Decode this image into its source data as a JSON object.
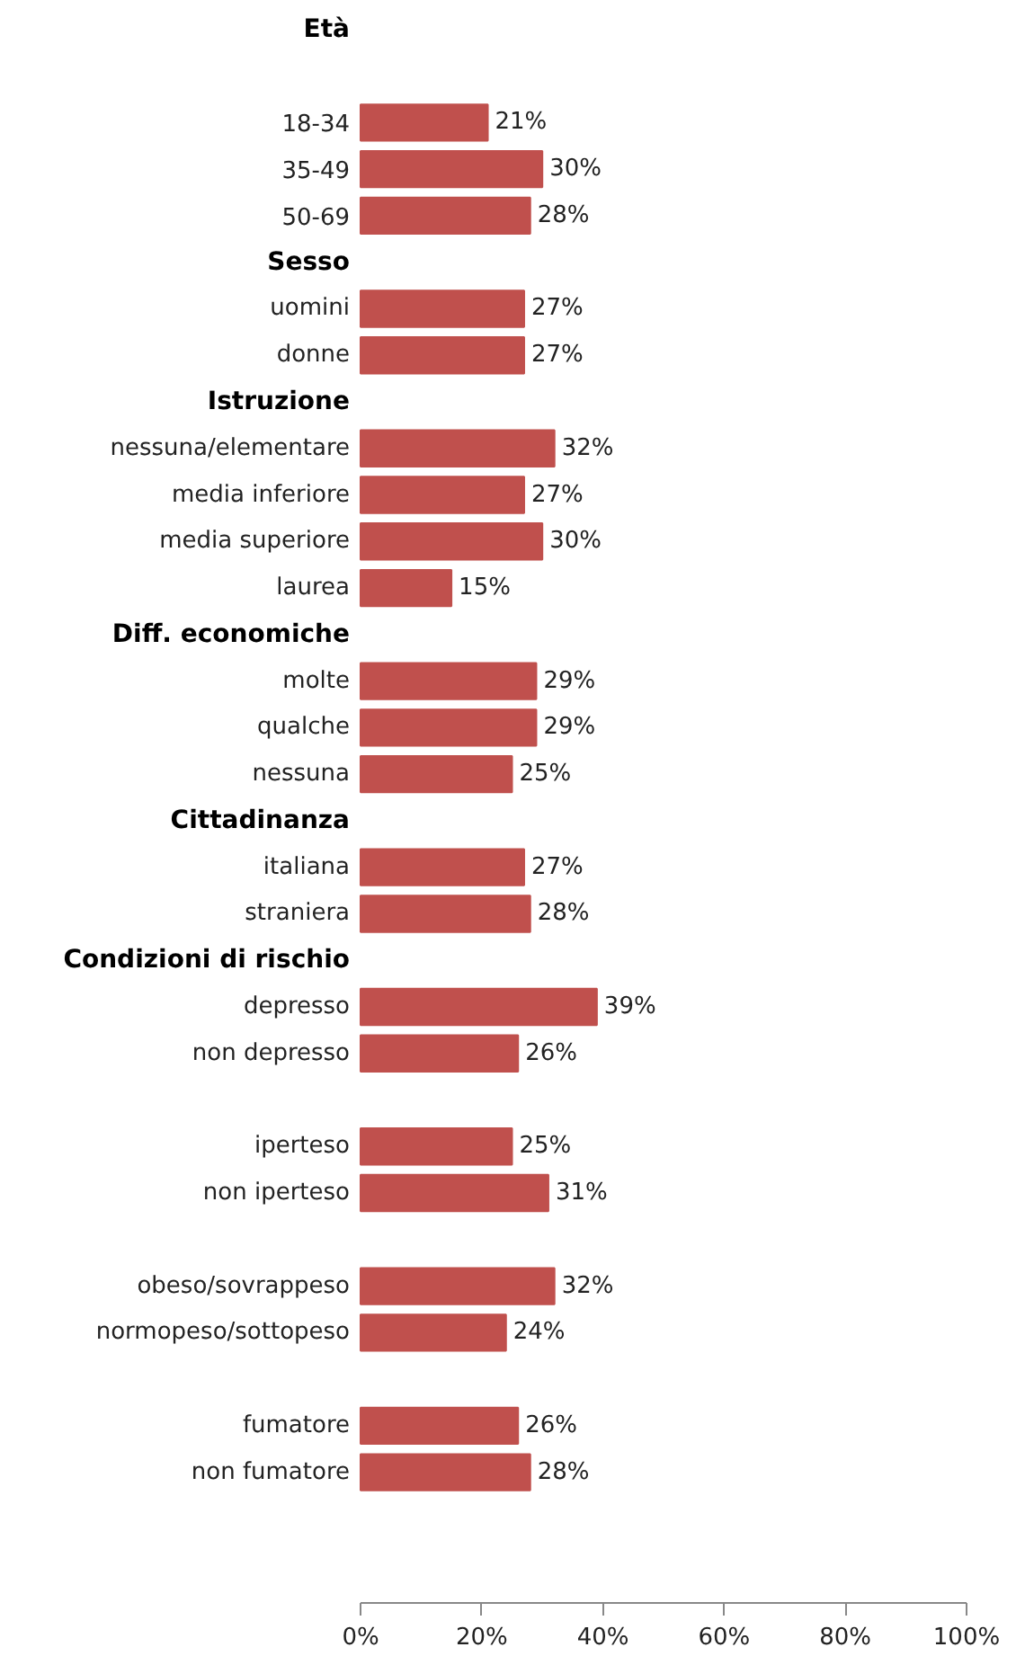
{
  "chart_data": {
    "type": "bar",
    "orientation": "horizontal",
    "categories": [
      "Età",
      null,
      "18-34",
      "35-49",
      "50-69",
      "Sesso",
      "uomini",
      "donne",
      "Istruzione",
      "nessuna/elementare",
      "media inferiore",
      "media superiore",
      "laurea",
      "Diff. economiche",
      "molte",
      "qualche",
      "nessuna",
      "Cittadinanza",
      "italiana",
      "straniera",
      "Condizioni di rischio",
      "depresso",
      "non depresso",
      null,
      "iperteso",
      "non iperteso",
      null,
      "obeso/sovrappeso",
      "normopeso/sottopeso",
      null,
      "fumatore",
      "non fumatore"
    ],
    "values": [
      null,
      null,
      21,
      30,
      28,
      null,
      27,
      27,
      null,
      32,
      27,
      30,
      15,
      null,
      29,
      29,
      25,
      null,
      27,
      28,
      null,
      39,
      26,
      null,
      25,
      31,
      null,
      32,
      24,
      null,
      26,
      28
    ],
    "value_labels": [
      null,
      null,
      "21%",
      "30%",
      "28%",
      null,
      "27%",
      "27%",
      null,
      "32%",
      "27%",
      "30%",
      "15%",
      null,
      "29%",
      "29%",
      "25%",
      null,
      "27%",
      "28%",
      null,
      "39%",
      "26%",
      null,
      "25%",
      "31%",
      null,
      "32%",
      "24%",
      null,
      "26%",
      "28%"
    ],
    "color": "#c0504d",
    "xlim": [
      0,
      100
    ],
    "xticks": [
      {
        "value": 0,
        "label": "0%"
      },
      {
        "value": 20,
        "label": "20%"
      },
      {
        "value": 40,
        "label": "40%"
      },
      {
        "value": 60,
        "label": "60%"
      },
      {
        "value": 80,
        "label": "80%"
      },
      {
        "value": 100,
        "label": "100%"
      }
    ],
    "grid": false
  }
}
